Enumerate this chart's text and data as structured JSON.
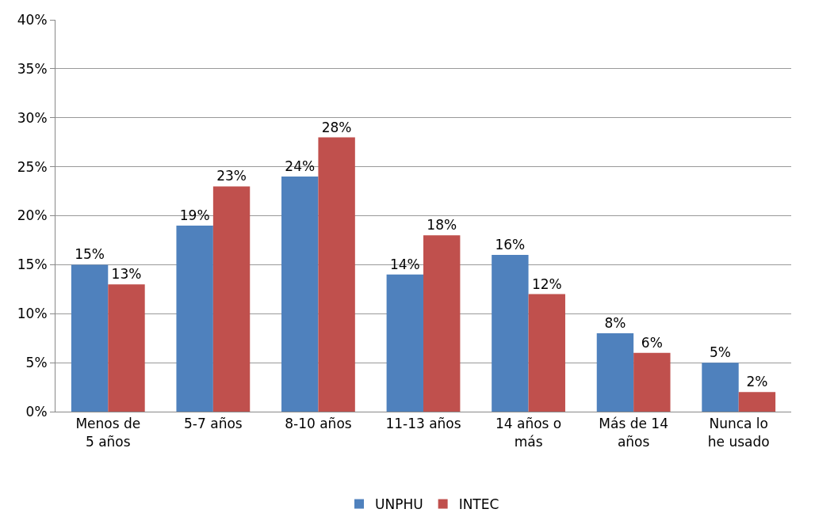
{
  "chart_data": {
    "type": "bar",
    "categories": [
      "Menos de\n5 años",
      "5-7 años",
      "8-10 años",
      "11-13 años",
      "14 años o\nmás",
      "Más de 14\naños",
      "Nunca lo\nhe usado"
    ],
    "series": [
      {
        "name": "UNPHU",
        "color": "#4f81bd",
        "values": [
          15,
          19,
          24,
          14,
          16,
          8,
          5
        ],
        "value_labels": [
          "15%",
          "19%",
          "24%",
          "14%",
          "16%",
          "8%",
          "5%"
        ]
      },
      {
        "name": "INTEC",
        "color": "#c0504d",
        "values": [
          13,
          23,
          28,
          18,
          12,
          6,
          2
        ],
        "value_labels": [
          "13%",
          "23%",
          "28%",
          "18%",
          "12%",
          "6%",
          "2%"
        ]
      }
    ],
    "ylim": [
      0,
      40
    ],
    "yticks": [
      {
        "value": 0,
        "label": "0%"
      },
      {
        "value": 5,
        "label": "5%"
      },
      {
        "value": 10,
        "label": "10%"
      },
      {
        "value": 15,
        "label": "15%"
      },
      {
        "value": 20,
        "label": "20%"
      },
      {
        "value": 25,
        "label": "25%"
      },
      {
        "value": 30,
        "label": "30%"
      },
      {
        "value": 35,
        "label": "35%"
      },
      {
        "value": 40,
        "label": "40%"
      }
    ],
    "grid": "y",
    "legend": "bottom"
  }
}
